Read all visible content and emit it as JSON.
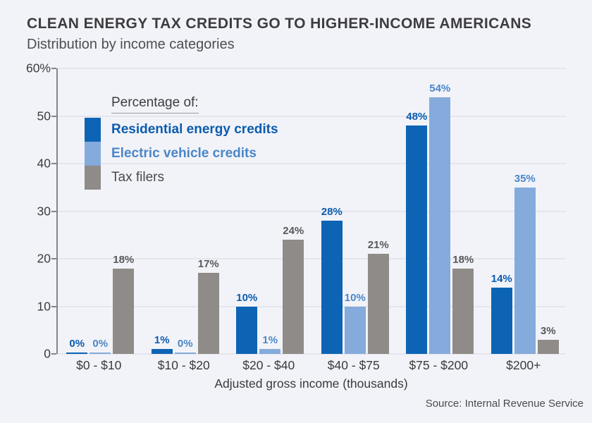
{
  "chart_data": {
    "type": "bar",
    "title": "CLEAN ENERGY TAX CREDITS GO TO HIGHER-INCOME AMERICANS",
    "subtitle": "Distribution by income categories",
    "xlabel": "Adjusted gross income (thousands)",
    "source": "Source: Internal Revenue Service",
    "legend_title": "Percentage of:",
    "categories": [
      "$0 - $10",
      "$10 - $20",
      "$20 - $40",
      "$40 - $75",
      "$75 - $200",
      "$200+"
    ],
    "series": [
      {
        "name": "Residential energy credits",
        "color": "#0d64b5",
        "label_color": "#0a5caf",
        "values": [
          0,
          1,
          10,
          28,
          48,
          14
        ]
      },
      {
        "name": "Electric vehicle credits",
        "color": "#84abdb",
        "label_color": "#4a86c8",
        "values": [
          0,
          0,
          1,
          10,
          54,
          35
        ]
      },
      {
        "name": "Tax filers",
        "color": "#8f8b88",
        "label_color": "#58585a",
        "values": [
          18,
          17,
          24,
          21,
          18,
          3
        ]
      }
    ],
    "data_label_suffix": "%",
    "ylim": [
      0,
      60
    ],
    "yticks": [
      0,
      10,
      20,
      30,
      40,
      50,
      60
    ],
    "ytick_labels": [
      "0",
      "10",
      "20",
      "30",
      "40",
      "50",
      "60%"
    ],
    "grid": true,
    "legend_position": "top-left",
    "colors": {
      "background": "#f2f3f8",
      "gridline": "#e4e5ed",
      "axis": "#83838d",
      "title_text": "#3d3d40",
      "tick_text": "#3c3c3e"
    }
  }
}
